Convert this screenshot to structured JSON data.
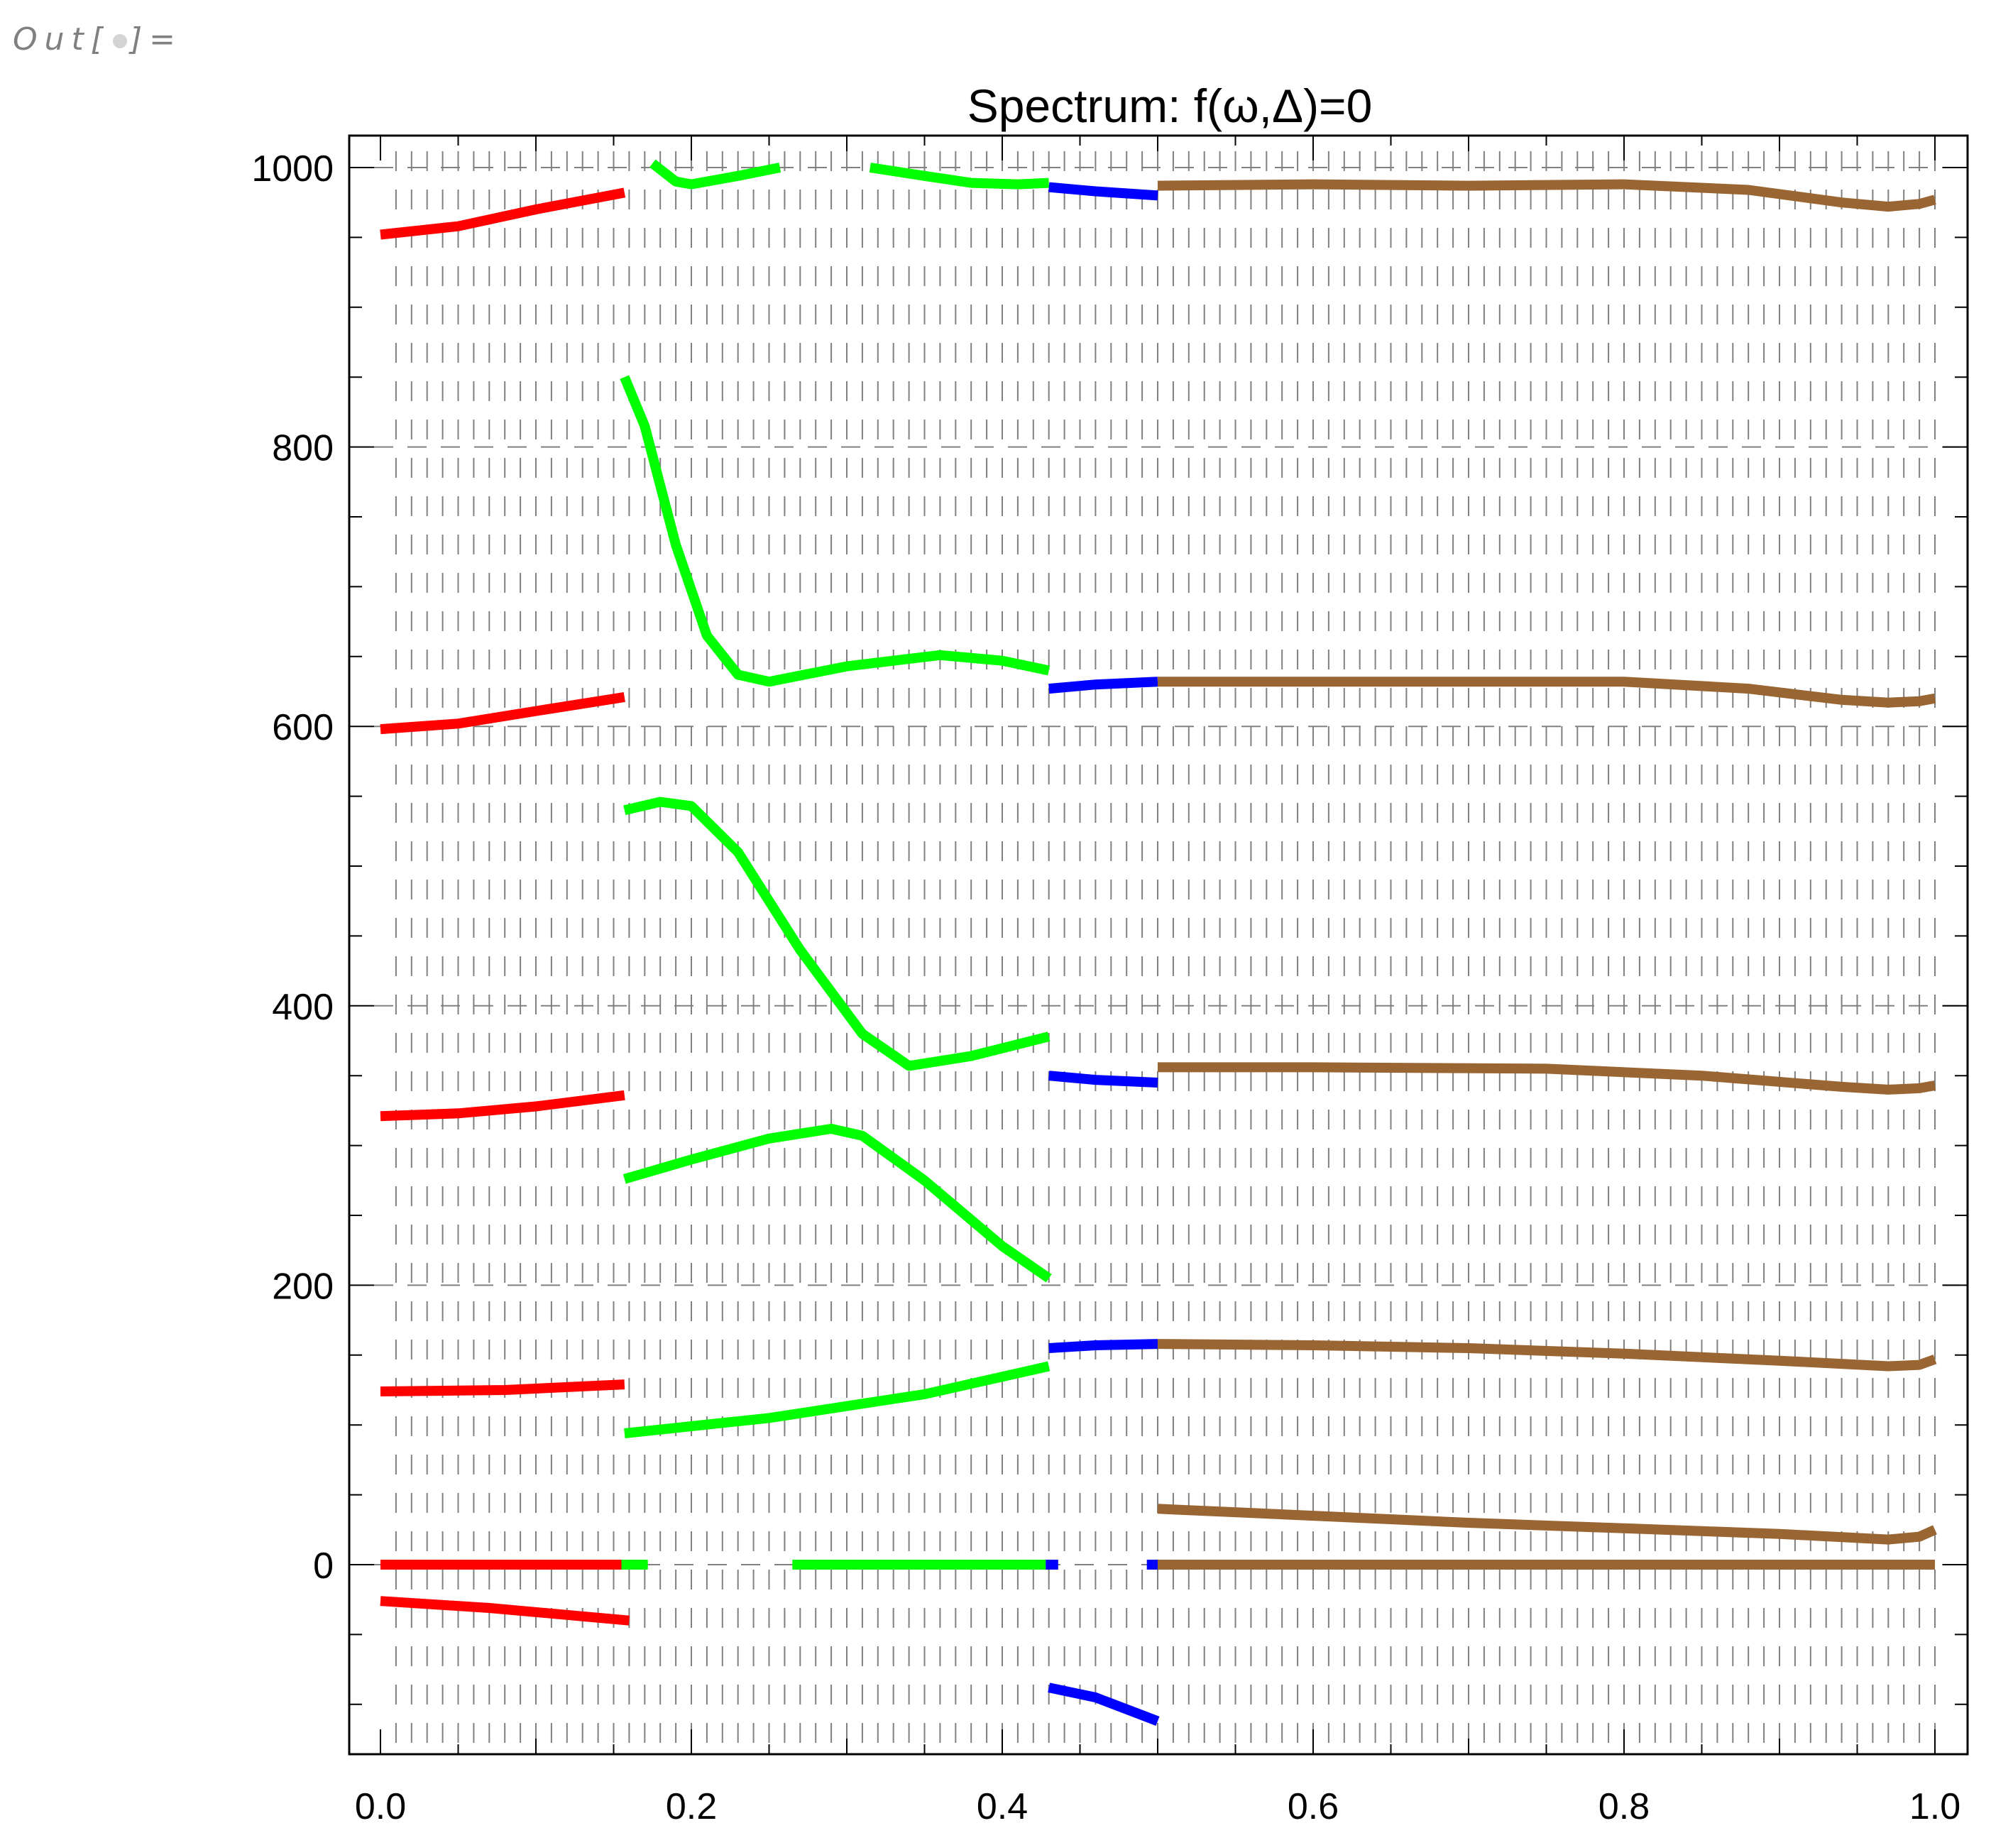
{
  "notebook": {
    "out_prefix": "Out[",
    "out_suffix": "]="
  },
  "chart_data": {
    "type": "line",
    "title": "Spectrum: f(ω,Δ)=0",
    "xlabel": "",
    "ylabel": "",
    "xlim": [
      -0.03,
      1.02
    ],
    "ylim": [
      -135,
      1023
    ],
    "x_ticks": [
      "0.0",
      "0.2",
      "0.4",
      "0.6",
      "0.8",
      "1.0"
    ],
    "y_ticks": [
      "0",
      "200",
      "400",
      "600",
      "800",
      "1000"
    ],
    "grid": "dashed gray horizontal gridlines at y=0,200,400,600,800,1000; dense dashed vertical mesh every 0.01 in x",
    "legend": null,
    "colors": {
      "red": "#ff0000",
      "green": "#00ff00",
      "blue": "#0000ff",
      "brown": "#996633",
      "grid": "#808080"
    },
    "series": [
      {
        "name": "red-1",
        "color": "red",
        "points": [
          [
            0.0,
            952
          ],
          [
            0.05,
            958
          ],
          [
            0.1,
            970
          ],
          [
            0.157,
            982
          ]
        ]
      },
      {
        "name": "red-2",
        "color": "red",
        "points": [
          [
            0.0,
            598
          ],
          [
            0.05,
            602
          ],
          [
            0.1,
            611
          ],
          [
            0.157,
            621
          ]
        ]
      },
      {
        "name": "red-3",
        "color": "red",
        "points": [
          [
            0.0,
            321
          ],
          [
            0.05,
            323
          ],
          [
            0.1,
            328
          ],
          [
            0.157,
            336
          ]
        ]
      },
      {
        "name": "red-4",
        "color": "red",
        "points": [
          [
            0.0,
            124
          ],
          [
            0.08,
            125
          ],
          [
            0.157,
            129
          ]
        ]
      },
      {
        "name": "red-5",
        "color": "red",
        "points": [
          [
            0.0,
            0
          ],
          [
            0.155,
            0
          ]
        ]
      },
      {
        "name": "red-6",
        "color": "red",
        "points": [
          [
            0.0,
            -26
          ],
          [
            0.07,
            -31
          ],
          [
            0.13,
            -37
          ],
          [
            0.16,
            -40
          ]
        ]
      },
      {
        "name": "green-1",
        "color": "green",
        "points": [
          [
            0.175,
            1003
          ],
          [
            0.19,
            990
          ],
          [
            0.2,
            988
          ],
          [
            0.23,
            994
          ],
          [
            0.257,
            1000
          ]
        ]
      },
      {
        "name": "green-2",
        "color": "green",
        "points": [
          [
            0.315,
            1000
          ],
          [
            0.35,
            994
          ],
          [
            0.38,
            989
          ],
          [
            0.41,
            988
          ],
          [
            0.43,
            989
          ]
        ]
      },
      {
        "name": "green-3",
        "color": "green",
        "points": [
          [
            0.157,
            850
          ],
          [
            0.17,
            815
          ],
          [
            0.19,
            730
          ],
          [
            0.21,
            665
          ],
          [
            0.23,
            637
          ],
          [
            0.25,
            632
          ],
          [
            0.3,
            643
          ],
          [
            0.36,
            651
          ],
          [
            0.4,
            647
          ],
          [
            0.43,
            640
          ]
        ]
      },
      {
        "name": "green-4",
        "color": "green",
        "points": [
          [
            0.157,
            540
          ],
          [
            0.18,
            546
          ],
          [
            0.2,
            543
          ],
          [
            0.23,
            510
          ],
          [
            0.27,
            440
          ],
          [
            0.31,
            380
          ],
          [
            0.34,
            357
          ],
          [
            0.38,
            364
          ],
          [
            0.43,
            378
          ]
        ]
      },
      {
        "name": "green-5",
        "color": "green",
        "points": [
          [
            0.157,
            276
          ],
          [
            0.2,
            290
          ],
          [
            0.25,
            305
          ],
          [
            0.29,
            312
          ],
          [
            0.31,
            307
          ],
          [
            0.35,
            275
          ],
          [
            0.4,
            228
          ],
          [
            0.43,
            205
          ]
        ]
      },
      {
        "name": "green-6",
        "color": "green",
        "points": [
          [
            0.157,
            94
          ],
          [
            0.25,
            105
          ],
          [
            0.35,
            122
          ],
          [
            0.43,
            142
          ]
        ]
      },
      {
        "name": "green-7",
        "color": "green",
        "points": [
          [
            0.155,
            0
          ],
          [
            0.172,
            0
          ]
        ]
      },
      {
        "name": "green-8",
        "color": "green",
        "points": [
          [
            0.265,
            0
          ],
          [
            0.428,
            0
          ]
        ]
      },
      {
        "name": "blue-1",
        "color": "blue",
        "points": [
          [
            0.43,
            986
          ],
          [
            0.46,
            983
          ],
          [
            0.5,
            980
          ]
        ]
      },
      {
        "name": "blue-2",
        "color": "blue",
        "points": [
          [
            0.43,
            627
          ],
          [
            0.46,
            630
          ],
          [
            0.5,
            632
          ]
        ]
      },
      {
        "name": "blue-3",
        "color": "blue",
        "points": [
          [
            0.43,
            350
          ],
          [
            0.46,
            347
          ],
          [
            0.5,
            345
          ]
        ]
      },
      {
        "name": "blue-4",
        "color": "blue",
        "points": [
          [
            0.43,
            155
          ],
          [
            0.46,
            157
          ],
          [
            0.5,
            158
          ]
        ]
      },
      {
        "name": "blue-5",
        "color": "blue",
        "points": [
          [
            0.43,
            -88
          ],
          [
            0.46,
            -95
          ],
          [
            0.5,
            -112
          ]
        ]
      },
      {
        "name": "blue-6",
        "color": "blue",
        "points": [
          [
            0.428,
            0
          ],
          [
            0.436,
            0
          ]
        ]
      },
      {
        "name": "blue-7",
        "color": "blue",
        "points": [
          [
            0.493,
            0
          ],
          [
            0.5,
            0
          ]
        ]
      },
      {
        "name": "brown-1",
        "color": "brown",
        "points": [
          [
            0.5,
            987
          ],
          [
            0.6,
            988
          ],
          [
            0.7,
            987
          ],
          [
            0.8,
            988
          ],
          [
            0.88,
            984
          ],
          [
            0.94,
            975
          ],
          [
            0.97,
            972
          ],
          [
            0.99,
            974
          ],
          [
            1.0,
            977
          ]
        ]
      },
      {
        "name": "brown-2",
        "color": "brown",
        "points": [
          [
            0.5,
            632
          ],
          [
            0.6,
            632
          ],
          [
            0.7,
            632
          ],
          [
            0.8,
            632
          ],
          [
            0.88,
            627
          ],
          [
            0.94,
            619
          ],
          [
            0.97,
            617
          ],
          [
            0.99,
            618
          ],
          [
            1.0,
            620
          ]
        ]
      },
      {
        "name": "brown-3",
        "color": "brown",
        "points": [
          [
            0.5,
            356
          ],
          [
            0.6,
            356
          ],
          [
            0.75,
            355
          ],
          [
            0.85,
            350
          ],
          [
            0.94,
            342
          ],
          [
            0.97,
            340
          ],
          [
            0.99,
            341
          ],
          [
            1.0,
            343
          ]
        ]
      },
      {
        "name": "brown-4",
        "color": "brown",
        "points": [
          [
            0.5,
            158
          ],
          [
            0.6,
            157
          ],
          [
            0.7,
            155
          ],
          [
            0.8,
            151
          ],
          [
            0.9,
            146
          ],
          [
            0.97,
            142
          ],
          [
            0.99,
            143
          ],
          [
            1.0,
            147
          ]
        ]
      },
      {
        "name": "brown-5",
        "color": "brown",
        "points": [
          [
            0.5,
            40
          ],
          [
            0.6,
            35
          ],
          [
            0.7,
            30
          ],
          [
            0.8,
            26
          ],
          [
            0.9,
            22
          ],
          [
            0.97,
            18
          ],
          [
            0.99,
            20
          ],
          [
            1.0,
            25
          ]
        ]
      },
      {
        "name": "brown-6",
        "color": "brown",
        "points": [
          [
            0.5,
            0
          ],
          [
            1.0,
            0
          ]
        ]
      }
    ]
  }
}
